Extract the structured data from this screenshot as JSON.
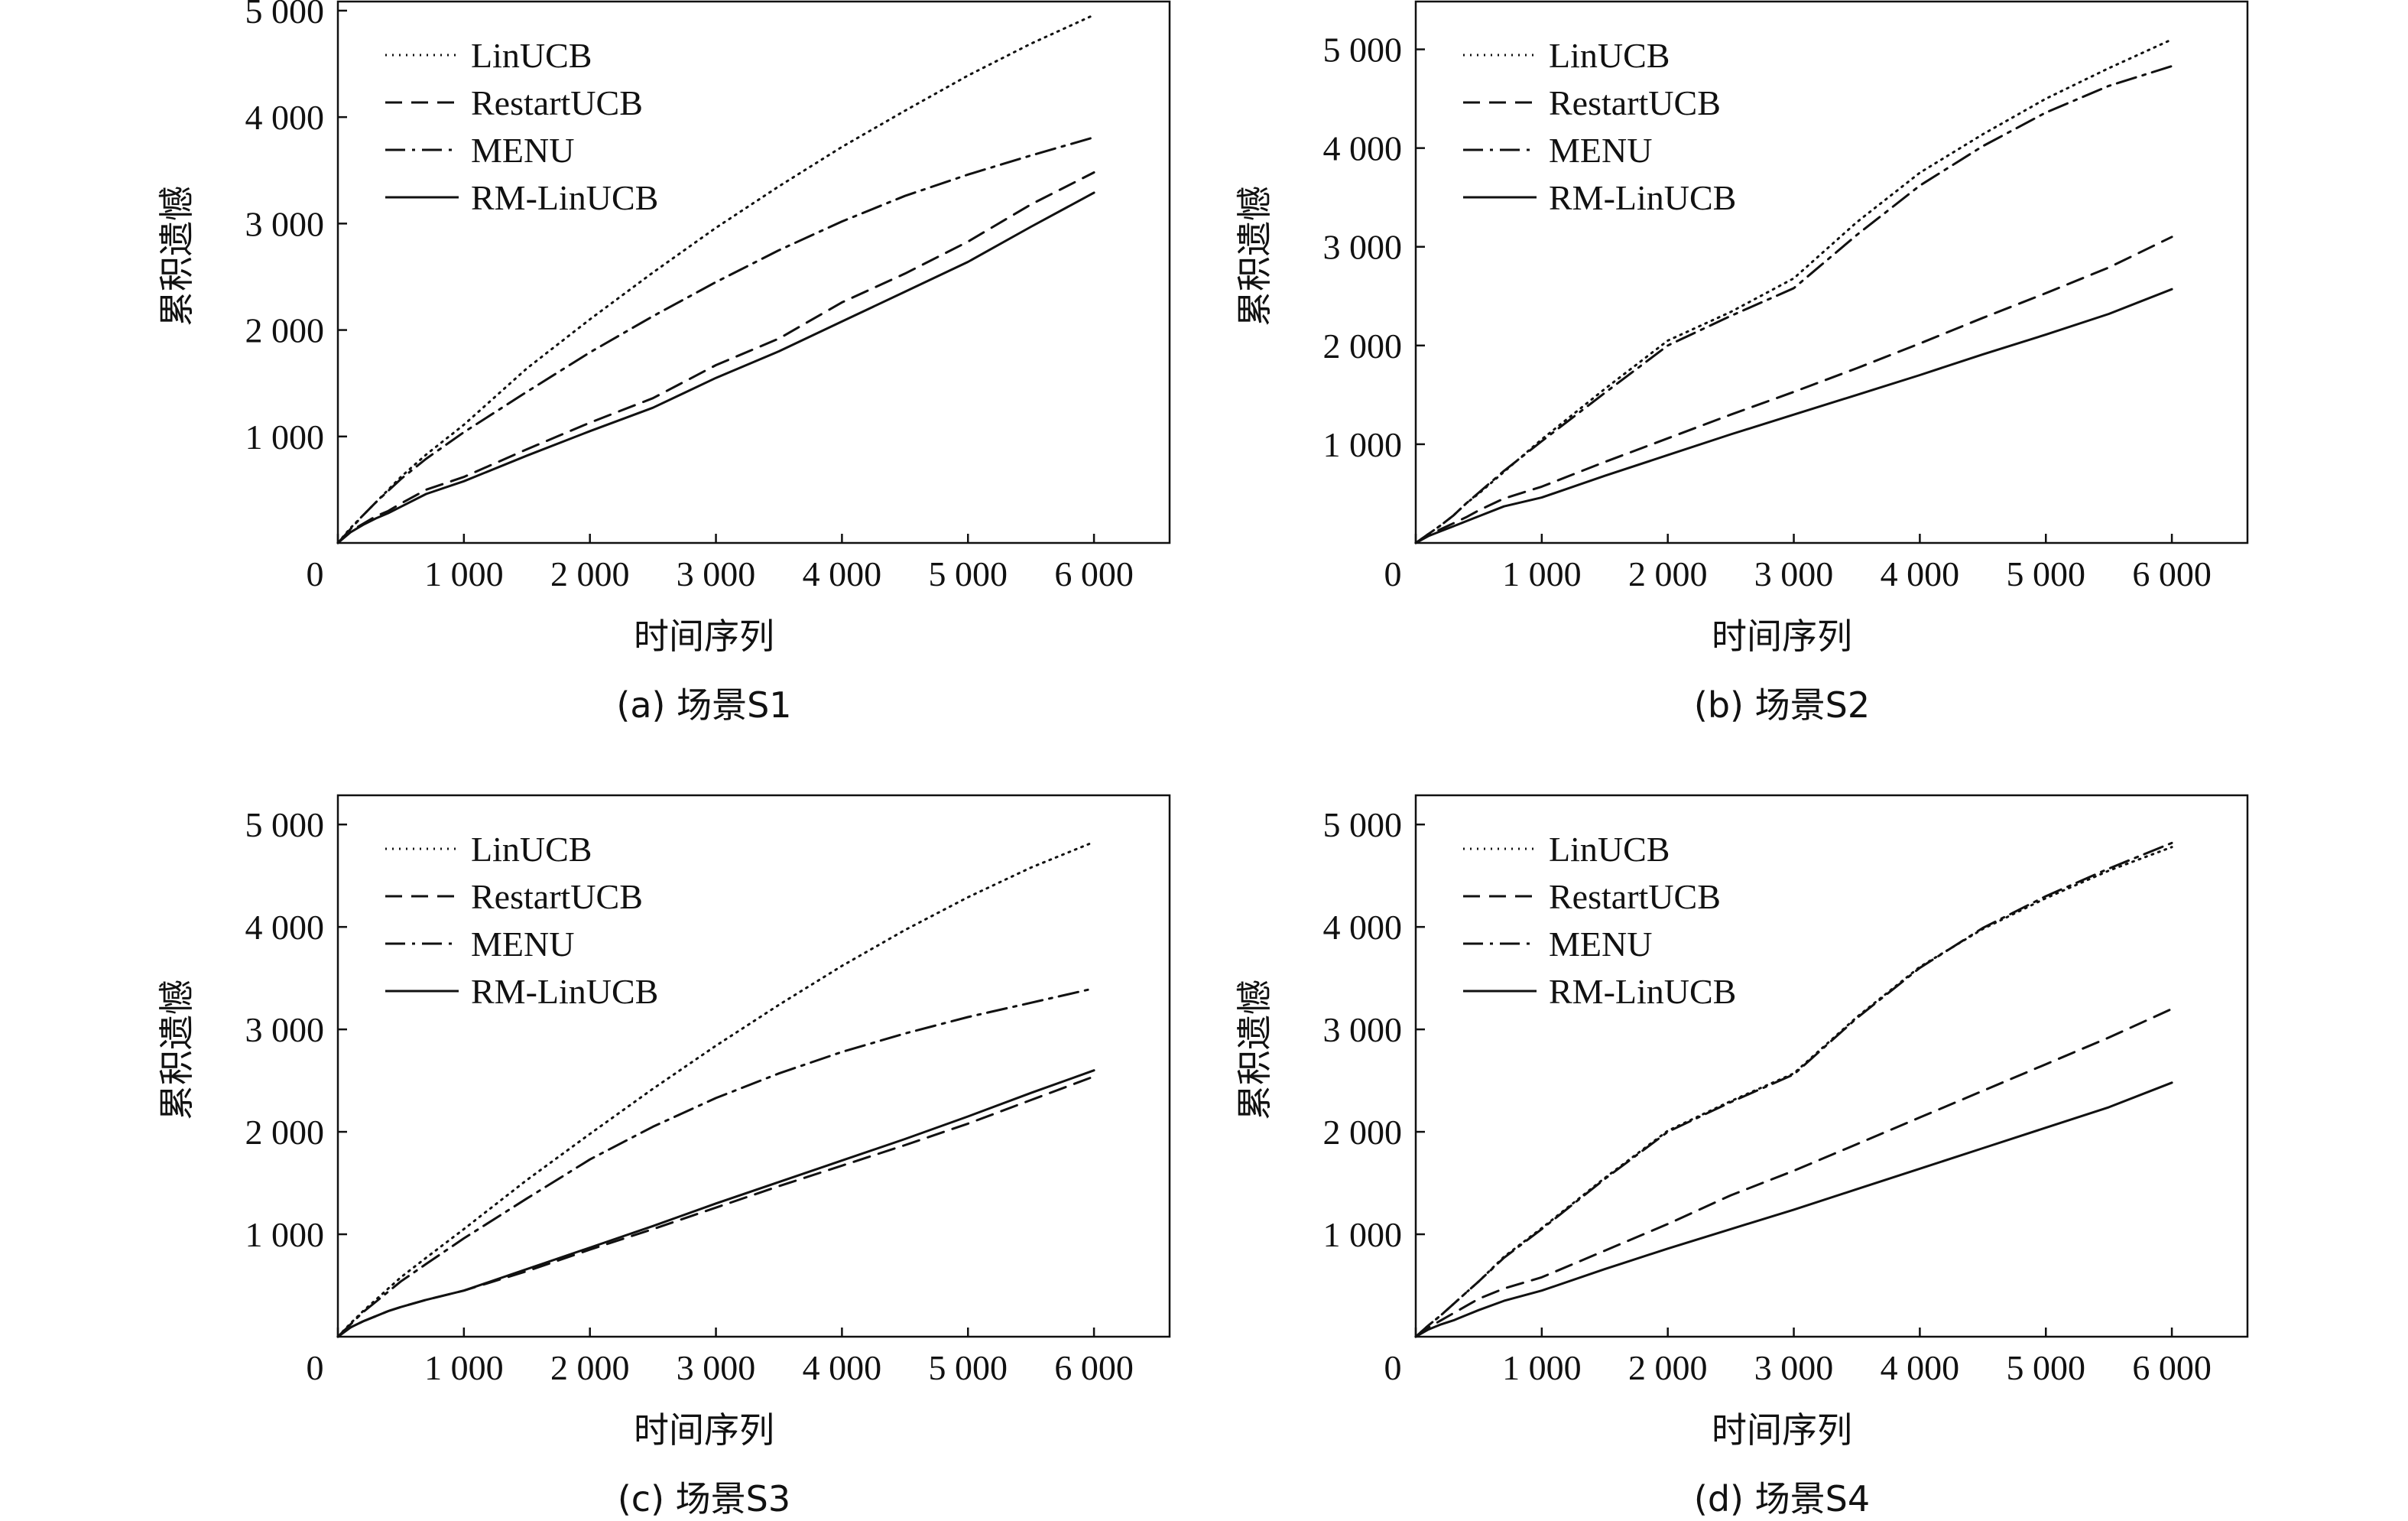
{
  "chart_data": [
    {
      "type": "line",
      "caption": "(a)  场景S1",
      "xlabel": "时间序列",
      "ylabel": "累积遗憾",
      "xlim": [
        0,
        6600
      ],
      "ylim": [
        0,
        5100
      ],
      "xticks": [
        0,
        1000,
        2000,
        3000,
        4000,
        5000,
        6000
      ],
      "xtick_labels": [
        "0",
        "1 000",
        "2 000",
        "3 000",
        "4 000",
        "5 000",
        "6 000"
      ],
      "yticks": [
        1000,
        2000,
        3000,
        4000,
        5000
      ],
      "ytick_labels": [
        "1 000",
        "2 000",
        "3 000",
        "4 000",
        "5 000"
      ],
      "grid": false,
      "legend_position": "top-left",
      "series": [
        {
          "name": "LinUCB",
          "style": "dotted",
          "x": [
            0,
            100,
            200,
            300,
            400,
            500,
            700,
            1000,
            1500,
            2000,
            2500,
            3000,
            3500,
            4000,
            4500,
            5000,
            5500,
            6000
          ],
          "y": [
            0,
            140,
            260,
            380,
            500,
            620,
            830,
            1110,
            1640,
            2100,
            2540,
            2960,
            3350,
            3720,
            4060,
            4390,
            4690,
            4960
          ]
        },
        {
          "name": "RestartUCB",
          "style": "dashed",
          "x": [
            0,
            100,
            200,
            300,
            400,
            500,
            700,
            1000,
            1500,
            2000,
            2500,
            3000,
            3500,
            4000,
            4500,
            5000,
            5500,
            6000
          ],
          "y": [
            0,
            110,
            180,
            250,
            300,
            370,
            500,
            620,
            880,
            1130,
            1360,
            1670,
            1920,
            2260,
            2530,
            2830,
            3180,
            3480
          ]
        },
        {
          "name": "MENU",
          "style": "dashdot",
          "x": [
            0,
            100,
            200,
            300,
            400,
            500,
            700,
            1000,
            1500,
            2000,
            2500,
            3000,
            3500,
            4000,
            4500,
            5000,
            5500,
            6000
          ],
          "y": [
            0,
            130,
            260,
            380,
            490,
            600,
            790,
            1040,
            1420,
            1790,
            2130,
            2450,
            2750,
            3020,
            3260,
            3460,
            3640,
            3810
          ]
        },
        {
          "name": "RM-LinUCB",
          "style": "solid",
          "x": [
            0,
            100,
            200,
            300,
            400,
            500,
            700,
            1000,
            1500,
            2000,
            2500,
            3000,
            3500,
            4000,
            4500,
            5000,
            5500,
            6000
          ],
          "y": [
            0,
            100,
            170,
            230,
            280,
            340,
            460,
            580,
            820,
            1050,
            1270,
            1550,
            1800,
            2080,
            2360,
            2640,
            2970,
            3290
          ]
        }
      ]
    },
    {
      "type": "line",
      "caption": "(b)  场景S2",
      "xlabel": "时间序列",
      "ylabel": "累积遗憾",
      "xlim": [
        0,
        6600
      ],
      "ylim": [
        0,
        5500
      ],
      "xticks": [
        0,
        1000,
        2000,
        3000,
        4000,
        5000,
        6000
      ],
      "xtick_labels": [
        "0",
        "1 000",
        "2 000",
        "3 000",
        "4 000",
        "5 000",
        "6 000"
      ],
      "yticks": [
        1000,
        2000,
        3000,
        4000,
        5000
      ],
      "ytick_labels": [
        "1 000",
        "2 000",
        "3 000",
        "4 000",
        "5 000"
      ],
      "grid": false,
      "legend_position": "top-left",
      "series": [
        {
          "name": "LinUCB",
          "style": "dotted",
          "x": [
            0,
            100,
            200,
            300,
            400,
            500,
            700,
            1000,
            1500,
            2000,
            2500,
            3000,
            3500,
            4000,
            4500,
            5000,
            5500,
            6000
          ],
          "y": [
            0,
            90,
            180,
            280,
            400,
            500,
            720,
            1050,
            1560,
            2050,
            2340,
            2680,
            3250,
            3750,
            4140,
            4500,
            4810,
            5100
          ]
        },
        {
          "name": "RestartUCB",
          "style": "dashed",
          "x": [
            0,
            100,
            200,
            300,
            400,
            500,
            700,
            1000,
            1500,
            2000,
            2500,
            3000,
            3500,
            4000,
            4500,
            5000,
            5500,
            6000
          ],
          "y": [
            0,
            80,
            140,
            200,
            260,
            330,
            450,
            570,
            820,
            1060,
            1300,
            1530,
            1770,
            2020,
            2280,
            2530,
            2790,
            3100
          ]
        },
        {
          "name": "MENU",
          "style": "dashdot",
          "x": [
            0,
            100,
            200,
            300,
            400,
            500,
            700,
            1000,
            1500,
            2000,
            2500,
            3000,
            3500,
            4000,
            4500,
            5000,
            5500,
            6000
          ],
          "y": [
            0,
            90,
            180,
            280,
            400,
            510,
            730,
            1030,
            1520,
            2000,
            2300,
            2580,
            3120,
            3620,
            4020,
            4360,
            4630,
            4830
          ]
        },
        {
          "name": "RM-LinUCB",
          "style": "solid",
          "x": [
            0,
            100,
            200,
            300,
            400,
            500,
            700,
            1000,
            1500,
            2000,
            2500,
            3000,
            3500,
            4000,
            4500,
            5000,
            5500,
            6000
          ],
          "y": [
            0,
            70,
            120,
            170,
            220,
            270,
            370,
            460,
            680,
            890,
            1100,
            1300,
            1500,
            1700,
            1910,
            2110,
            2320,
            2570
          ]
        }
      ]
    },
    {
      "type": "line",
      "caption": "(c)  场景S3",
      "xlabel": "时间序列",
      "ylabel": "累积遗憾",
      "xlim": [
        0,
        6600
      ],
      "ylim": [
        0,
        5300
      ],
      "xticks": [
        0,
        1000,
        2000,
        3000,
        4000,
        5000,
        6000
      ],
      "xtick_labels": [
        "0",
        "1 000",
        "2 000",
        "3 000",
        "4 000",
        "5 000",
        "6 000"
      ],
      "yticks": [
        1000,
        2000,
        3000,
        4000,
        5000
      ],
      "ytick_labels": [
        "1 000",
        "2 000",
        "3 000",
        "4 000",
        "5 000"
      ],
      "grid": false,
      "legend_position": "top-left",
      "series": [
        {
          "name": "LinUCB",
          "style": "dotted",
          "x": [
            0,
            100,
            200,
            300,
            400,
            500,
            700,
            1000,
            1500,
            2000,
            2500,
            3000,
            3500,
            4000,
            4500,
            5000,
            5500,
            6000
          ],
          "y": [
            0,
            130,
            250,
            360,
            470,
            580,
            770,
            1050,
            1530,
            1980,
            2420,
            2840,
            3240,
            3620,
            3970,
            4290,
            4580,
            4830
          ]
        },
        {
          "name": "RestartUCB",
          "style": "dashed",
          "x": [
            0,
            100,
            200,
            300,
            400,
            500,
            700,
            1000,
            1500,
            2000,
            2500,
            3000,
            3500,
            4000,
            4500,
            5000,
            5500,
            6000
          ],
          "y": [
            0,
            90,
            150,
            200,
            250,
            290,
            360,
            450,
            640,
            850,
            1050,
            1260,
            1470,
            1670,
            1870,
            2080,
            2310,
            2540
          ]
        },
        {
          "name": "MENU",
          "style": "dashdot",
          "x": [
            0,
            100,
            200,
            300,
            400,
            500,
            700,
            1000,
            1500,
            2000,
            2500,
            3000,
            3500,
            4000,
            4500,
            5000,
            5500,
            6000
          ],
          "y": [
            0,
            120,
            240,
            340,
            440,
            540,
            710,
            960,
            1350,
            1730,
            2050,
            2330,
            2570,
            2780,
            2960,
            3120,
            3260,
            3400
          ]
        },
        {
          "name": "RM-LinUCB",
          "style": "solid",
          "x": [
            0,
            100,
            200,
            300,
            400,
            500,
            700,
            1000,
            1500,
            2000,
            2500,
            3000,
            3500,
            4000,
            4500,
            5000,
            5500,
            6000
          ],
          "y": [
            0,
            90,
            150,
            200,
            250,
            290,
            360,
            450,
            660,
            870,
            1080,
            1300,
            1510,
            1720,
            1930,
            2150,
            2380,
            2600
          ]
        }
      ]
    },
    {
      "type": "line",
      "caption": "(d)  场景S4",
      "xlabel": "时间序列",
      "ylabel": "累积遗憾",
      "xlim": [
        0,
        6600
      ],
      "ylim": [
        0,
        5300
      ],
      "xticks": [
        0,
        1000,
        2000,
        3000,
        4000,
        5000,
        6000
      ],
      "xtick_labels": [
        "0",
        "1 000",
        "2 000",
        "3 000",
        "4 000",
        "5 000",
        "6 000"
      ],
      "yticks": [
        1000,
        2000,
        3000,
        4000,
        5000
      ],
      "ytick_labels": [
        "1 000",
        "2 000",
        "3 000",
        "4 000",
        "5 000"
      ],
      "grid": false,
      "legend_position": "top-left",
      "series": [
        {
          "name": "LinUCB",
          "style": "dotted",
          "x": [
            0,
            100,
            200,
            300,
            400,
            500,
            700,
            1000,
            1500,
            2000,
            2500,
            3000,
            3500,
            4000,
            4500,
            5000,
            5500,
            6000
          ],
          "y": [
            0,
            110,
            210,
            320,
            430,
            540,
            780,
            1060,
            1550,
            2010,
            2300,
            2570,
            3120,
            3610,
            3980,
            4280,
            4550,
            4780
          ]
        },
        {
          "name": "RestartUCB",
          "style": "dashed",
          "x": [
            0,
            100,
            200,
            300,
            400,
            500,
            700,
            1000,
            1500,
            2000,
            2500,
            3000,
            3500,
            4000,
            4500,
            5000,
            5500,
            6000
          ],
          "y": [
            0,
            90,
            160,
            230,
            300,
            370,
            470,
            580,
            840,
            1100,
            1380,
            1620,
            1880,
            2140,
            2400,
            2660,
            2920,
            3200
          ]
        },
        {
          "name": "MENU",
          "style": "dashdot",
          "x": [
            0,
            100,
            200,
            300,
            400,
            500,
            700,
            1000,
            1500,
            2000,
            2500,
            3000,
            3500,
            4000,
            4500,
            5000,
            5500,
            6000
          ],
          "y": [
            0,
            110,
            210,
            320,
            430,
            540,
            770,
            1050,
            1540,
            2000,
            2290,
            2560,
            3110,
            3600,
            3990,
            4300,
            4570,
            4820
          ]
        },
        {
          "name": "RM-LinUCB",
          "style": "solid",
          "x": [
            0,
            100,
            200,
            300,
            400,
            500,
            700,
            1000,
            1500,
            2000,
            2500,
            3000,
            3500,
            4000,
            4500,
            5000,
            5500,
            6000
          ],
          "y": [
            0,
            70,
            120,
            160,
            210,
            260,
            350,
            450,
            660,
            860,
            1050,
            1240,
            1440,
            1640,
            1840,
            2040,
            2240,
            2480
          ]
        }
      ]
    }
  ]
}
